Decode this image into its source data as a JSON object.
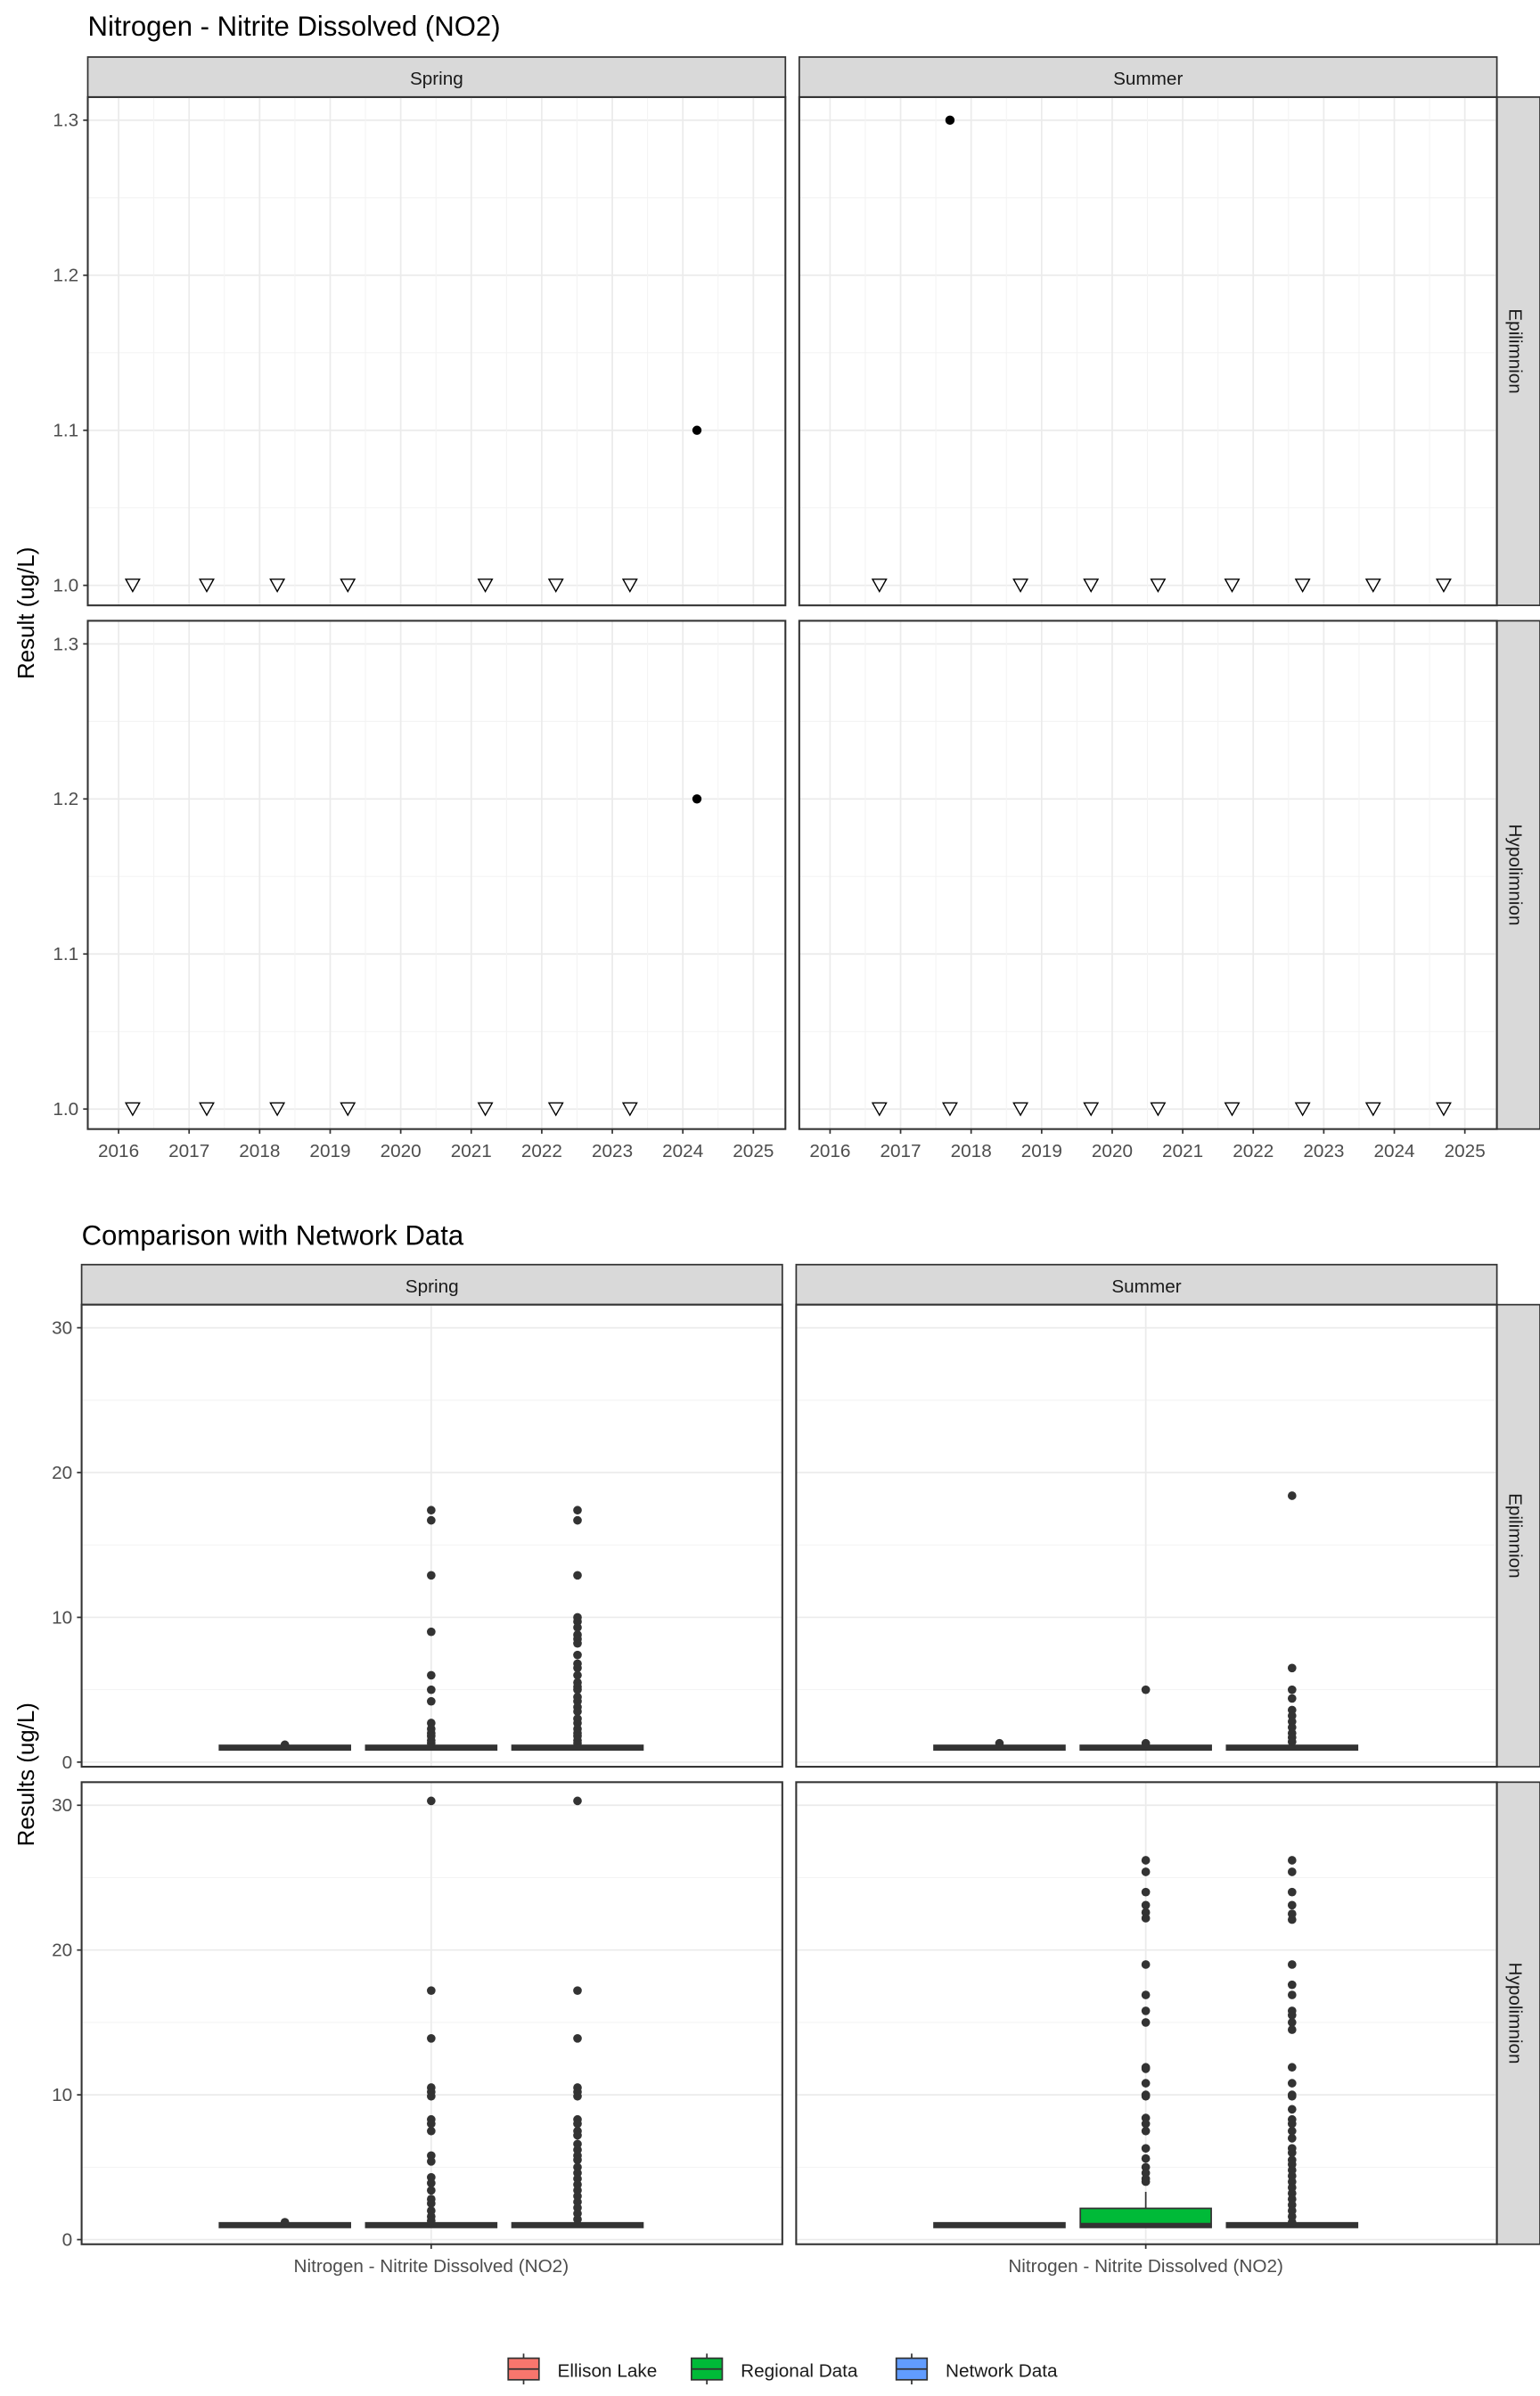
{
  "chart_data": [
    {
      "type": "scatter",
      "title": "Nitrogen - Nitrite Dissolved (NO2)",
      "ylabel": "Result (ug/L)",
      "xlabel": "",
      "columns": [
        "Spring",
        "Summer"
      ],
      "rows": [
        "Epilimnion",
        "Hypolimnion"
      ],
      "xlim": [
        2015.8,
        2025.4
      ],
      "ylim": [
        0.985,
        1.315
      ],
      "xticks": [
        "2016",
        "2017",
        "2018",
        "2019",
        "2020",
        "2021",
        "2022",
        "2023",
        "2024",
        "2025"
      ],
      "yticks": [
        "1.0",
        "1.1",
        "1.2",
        "1.3"
      ],
      "grid": true,
      "marker_legend": {
        "filled-circle": "detected",
        "open-triangle-down": "below detection limit"
      },
      "panels": [
        {
          "column": "Spring",
          "row": "Epilimnion",
          "detected": [
            {
              "x": 2024.2,
              "y": 1.1
            }
          ],
          "below_detection": [
            {
              "x": 2016.2,
              "y": 1.0
            },
            {
              "x": 2017.25,
              "y": 1.0
            },
            {
              "x": 2018.25,
              "y": 1.0
            },
            {
              "x": 2019.25,
              "y": 1.0
            },
            {
              "x": 2021.2,
              "y": 1.0
            },
            {
              "x": 2022.2,
              "y": 1.0
            },
            {
              "x": 2023.25,
              "y": 1.0
            }
          ]
        },
        {
          "column": "Summer",
          "row": "Epilimnion",
          "detected": [
            {
              "x": 2017.7,
              "y": 1.3
            }
          ],
          "below_detection": [
            {
              "x": 2016.7,
              "y": 1.0
            },
            {
              "x": 2018.7,
              "y": 1.0
            },
            {
              "x": 2019.7,
              "y": 1.0
            },
            {
              "x": 2020.65,
              "y": 1.0
            },
            {
              "x": 2021.7,
              "y": 1.0
            },
            {
              "x": 2022.7,
              "y": 1.0
            },
            {
              "x": 2023.7,
              "y": 1.0
            },
            {
              "x": 2024.7,
              "y": 1.0
            }
          ]
        },
        {
          "column": "Spring",
          "row": "Hypolimnion",
          "detected": [
            {
              "x": 2024.2,
              "y": 1.2
            }
          ],
          "below_detection": [
            {
              "x": 2016.2,
              "y": 1.0
            },
            {
              "x": 2017.25,
              "y": 1.0
            },
            {
              "x": 2018.25,
              "y": 1.0
            },
            {
              "x": 2019.25,
              "y": 1.0
            },
            {
              "x": 2021.2,
              "y": 1.0
            },
            {
              "x": 2022.2,
              "y": 1.0
            },
            {
              "x": 2023.25,
              "y": 1.0
            }
          ]
        },
        {
          "column": "Summer",
          "row": "Hypolimnion",
          "detected": [],
          "below_detection": [
            {
              "x": 2016.7,
              "y": 1.0
            },
            {
              "x": 2017.7,
              "y": 1.0
            },
            {
              "x": 2018.7,
              "y": 1.0
            },
            {
              "x": 2019.7,
              "y": 1.0
            },
            {
              "x": 2020.65,
              "y": 1.0
            },
            {
              "x": 2021.7,
              "y": 1.0
            },
            {
              "x": 2022.7,
              "y": 1.0
            },
            {
              "x": 2023.7,
              "y": 1.0
            },
            {
              "x": 2024.7,
              "y": 1.0
            }
          ]
        }
      ]
    },
    {
      "type": "box",
      "title": "Comparison with Network Data",
      "ylabel": "Results (ug/L)",
      "xlabel": "",
      "category": "Nitrogen - Nitrite Dissolved (NO2)",
      "columns": [
        "Spring",
        "Summer"
      ],
      "rows": [
        "Epilimnion",
        "Hypolimnion"
      ],
      "ylim": [
        -0.5,
        32
      ],
      "yticks": [
        "0",
        "10",
        "20",
        "30"
      ],
      "grid": true,
      "legend": {
        "position": "bottom",
        "entries": [
          {
            "name": "Ellison Lake",
            "color": "#F8766D"
          },
          {
            "name": "Regional Data",
            "color": "#00BA38"
          },
          {
            "name": "Network Data",
            "color": "#619CFF"
          }
        ]
      },
      "panels": [
        {
          "column": "Spring",
          "row": "Epilimnion",
          "boxes": [
            {
              "group": "Ellison Lake",
              "q1": 1,
              "median": 1,
              "q3": 1,
              "whisker_low": 1,
              "whisker_high": 1,
              "outliers": [
                1.2
              ]
            },
            {
              "group": "Regional Data",
              "q1": 1,
              "median": 1,
              "q3": 1,
              "whisker_low": 1,
              "whisker_high": 1,
              "outliers": [
                17.4,
                16.7,
                12.9,
                9,
                6,
                5,
                4.2,
                2.7,
                2.3,
                2,
                1.8,
                1.5,
                1.3
              ]
            },
            {
              "group": "Network Data",
              "q1": 1,
              "median": 1,
              "q3": 1,
              "whisker_low": 1,
              "whisker_high": 1,
              "outliers": [
                17.4,
                16.7,
                12.9,
                10,
                9.7,
                9.3,
                8.8,
                8.5,
                8.2,
                7.4,
                6.8,
                6.5,
                6,
                5.5,
                5.2,
                5,
                4.5,
                4.2,
                3.8,
                3.5,
                3,
                2.7,
                2.3,
                2,
                1.8,
                1.5,
                1.3
              ]
            }
          ]
        },
        {
          "column": "Summer",
          "row": "Epilimnion",
          "boxes": [
            {
              "group": "Ellison Lake",
              "q1": 1,
              "median": 1,
              "q3": 1,
              "whisker_low": 1,
              "whisker_high": 1,
              "outliers": [
                1.3
              ]
            },
            {
              "group": "Regional Data",
              "q1": 1,
              "median": 1,
              "q3": 1,
              "whisker_low": 1,
              "whisker_high": 1,
              "outliers": [
                5,
                1.3
              ]
            },
            {
              "group": "Network Data",
              "q1": 1,
              "median": 1,
              "q3": 1,
              "whisker_low": 1,
              "whisker_high": 1,
              "outliers": [
                18.4,
                6.5,
                5,
                4.4,
                3.6,
                3.2,
                2.8,
                2.4,
                2,
                1.7,
                1.4
              ]
            }
          ]
        },
        {
          "column": "Spring",
          "row": "Hypolimnion",
          "boxes": [
            {
              "group": "Ellison Lake",
              "q1": 1,
              "median": 1,
              "q3": 1,
              "whisker_low": 1,
              "whisker_high": 1,
              "outliers": [
                1.2
              ]
            },
            {
              "group": "Regional Data",
              "q1": 1,
              "median": 1,
              "q3": 1,
              "whisker_low": 1,
              "whisker_high": 1,
              "outliers": [
                30.3,
                17.2,
                13.9,
                10.5,
                10.2,
                9.9,
                8.3,
                8,
                7.5,
                5.8,
                5.4,
                4.3,
                3.9,
                3.4,
                2.8,
                2.5,
                2,
                1.6,
                1.3
              ]
            },
            {
              "group": "Network Data",
              "q1": 1,
              "median": 1,
              "q3": 1,
              "whisker_low": 1,
              "whisker_high": 1,
              "outliers": [
                30.3,
                17.2,
                13.9,
                10.5,
                10.2,
                9.9,
                8.3,
                8,
                7.5,
                7.2,
                6.6,
                6.2,
                5.8,
                5.5,
                5,
                4.6,
                4.2,
                3.8,
                3.4,
                3,
                2.6,
                2.2,
                1.8,
                1.4
              ]
            }
          ]
        },
        {
          "column": "Summer",
          "row": "Hypolimnion",
          "boxes": [
            {
              "group": "Ellison Lake",
              "q1": 1,
              "median": 1,
              "q3": 1,
              "whisker_low": 1,
              "whisker_high": 1,
              "outliers": []
            },
            {
              "group": "Regional Data",
              "q1": 1,
              "median": 1,
              "q3": 2,
              "whisker_low": 1,
              "whisker_high": 3.3,
              "outliers": [
                26.2,
                25.4,
                24,
                23.1,
                22.6,
                22.2,
                19,
                16.9,
                15.8,
                15,
                11.9,
                11.8,
                10.8,
                10,
                9.9,
                8.4,
                8,
                7.5,
                6.3,
                5.6,
                5,
                4.6,
                4.2,
                4
              ]
            },
            {
              "group": "Network Data",
              "q1": 1,
              "median": 1,
              "q3": 1,
              "whisker_low": 1,
              "whisker_high": 1,
              "outliers": [
                26.2,
                25.4,
                24,
                23.1,
                22.5,
                22.1,
                19,
                17.6,
                16.9,
                15.8,
                15.5,
                15,
                14.5,
                11.9,
                10.8,
                10,
                9.9,
                9,
                8.3,
                8,
                7.5,
                7,
                6.3,
                6,
                5.5,
                5.2,
                4.8,
                4.4,
                4,
                3.6,
                3.2,
                2.8,
                2.4,
                2,
                1.6,
                1.2
              ]
            }
          ]
        }
      ]
    }
  ]
}
